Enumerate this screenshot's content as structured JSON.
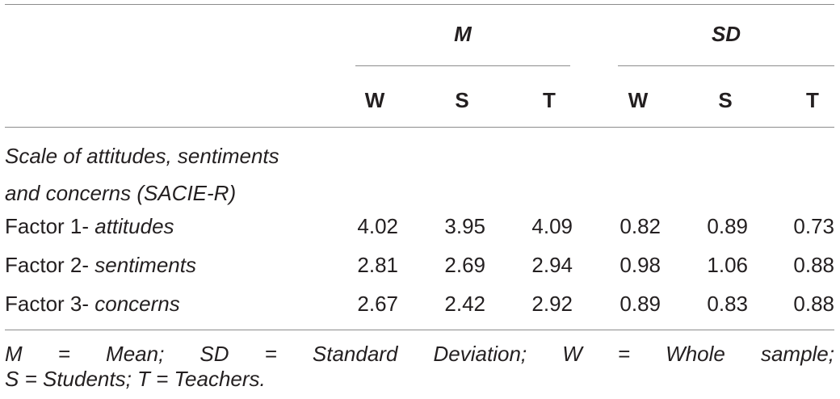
{
  "header": {
    "group_m": "M",
    "group_sd": "SD",
    "cols": [
      "W",
      "S",
      "T",
      "W",
      "S",
      "T"
    ]
  },
  "section": {
    "line1": "Scale of attitudes, sentiments",
    "line2": "and concerns (SACIE-R)"
  },
  "rows": [
    {
      "prefix": "Factor 1- ",
      "term": "attitudes",
      "values": [
        "4.02",
        "3.95",
        "4.09",
        "0.82",
        "0.89",
        "0.73"
      ]
    },
    {
      "prefix": "Factor 2- ",
      "term": "sentiments",
      "values": [
        "2.81",
        "2.69",
        "2.94",
        "0.98",
        "1.06",
        "0.88"
      ]
    },
    {
      "prefix": "Factor 3- ",
      "term": "concerns",
      "values": [
        "2.67",
        "2.42",
        "2.92",
        "0.89",
        "0.83",
        "0.88"
      ]
    }
  ],
  "note": {
    "line1": "M = Mean; SD = Standard Deviation; W = Whole sample;",
    "line2": "S = Students; T = Teachers."
  }
}
